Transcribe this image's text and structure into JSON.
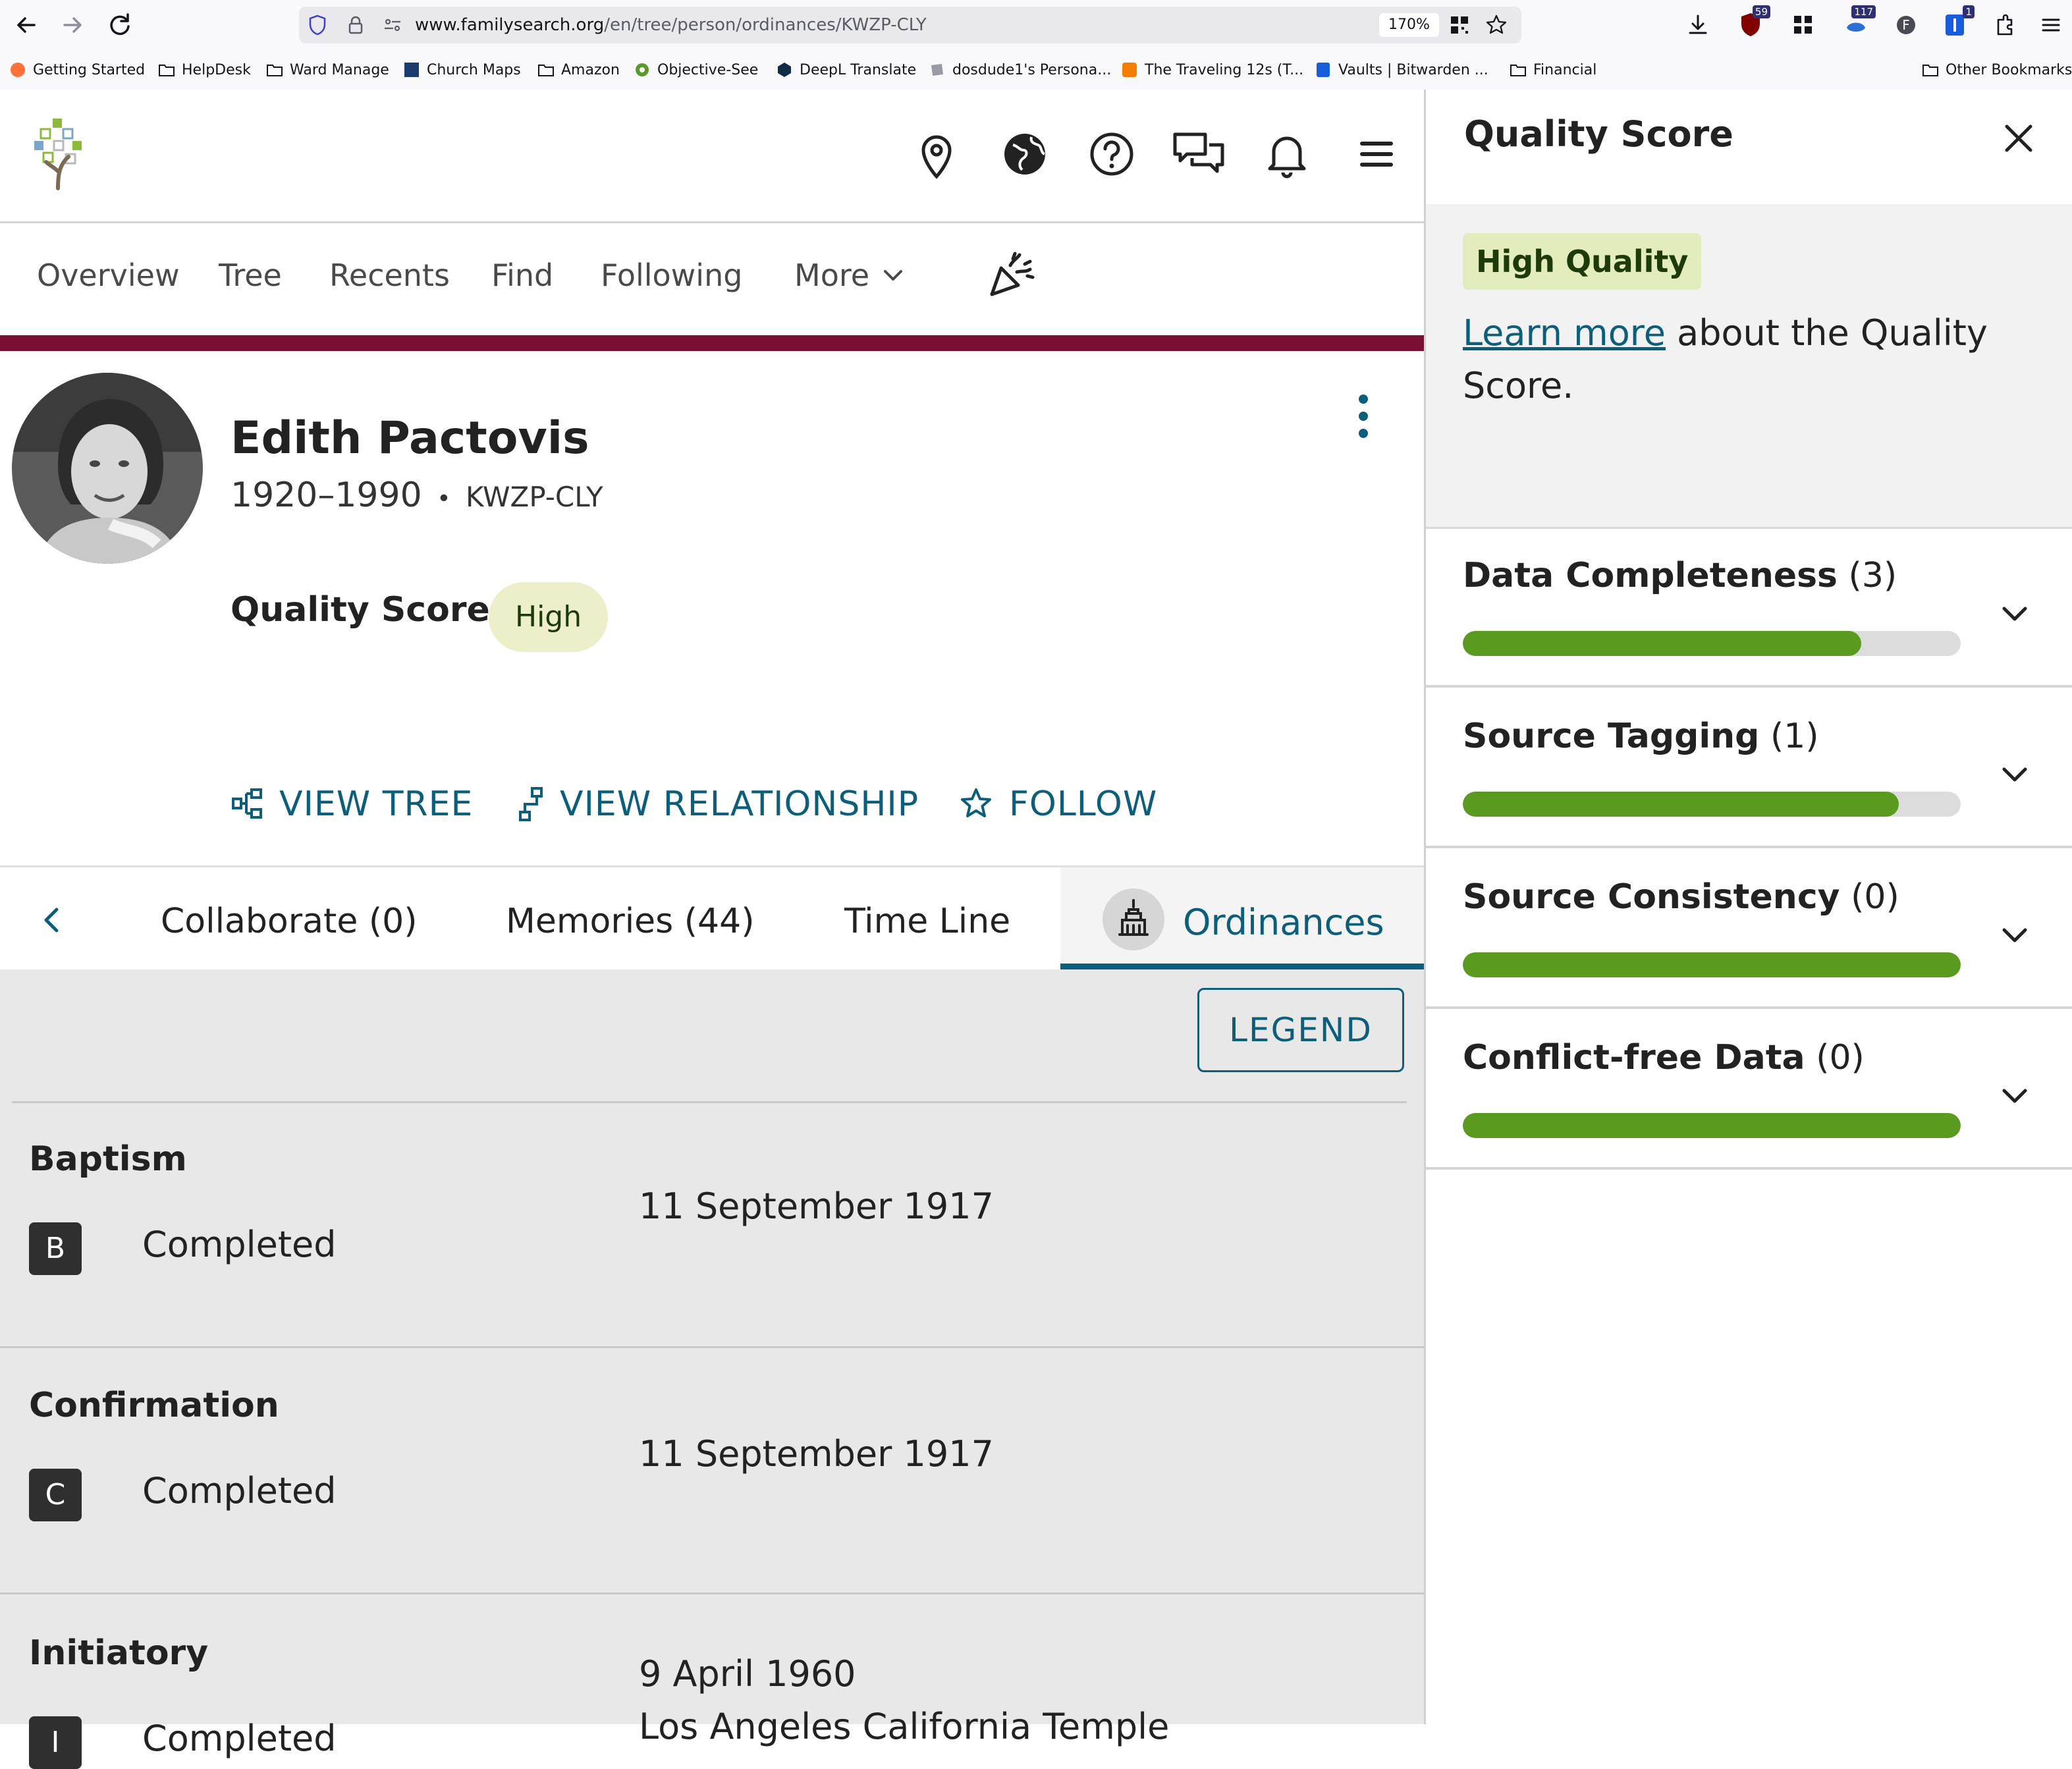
{
  "browser": {
    "url_host": "www.familysearch.org",
    "url_path": "/en/tree/person/ordinances/KWZP-CLY",
    "zoom": "170%",
    "badges": {
      "ublock": "59",
      "ext_a": "117",
      "bitwarden": "1"
    },
    "bookmarks": [
      "Getting Started",
      "HelpDesk",
      "Ward Manage",
      "Church Maps",
      "Amazon",
      "Objective-See",
      "DeepL Translate",
      "dosdude1's Persona...",
      "The Traveling 12s (T...",
      "Vaults | Bitwarden ...",
      "Financial"
    ],
    "other_bookmarks": "Other Bookmarks"
  },
  "nav": {
    "items": [
      "Overview",
      "Tree",
      "Recents",
      "Find",
      "Following",
      "More"
    ]
  },
  "person": {
    "name": "Edith Pactovis",
    "lifespan": "1920–1990",
    "separator": "•",
    "pid": "KWZP-CLY",
    "quality_label": "Quality Score:",
    "quality_value": "High"
  },
  "actions": {
    "view_tree": "VIEW TREE",
    "view_relationship": "VIEW RELATIONSHIP",
    "follow": "FOLLOW"
  },
  "tabs": {
    "collaborate": "Collaborate (0)",
    "memories": "Memories (44)",
    "timeline": "Time Line",
    "ordinances": "Ordinances"
  },
  "legend_label": "LEGEND",
  "ordinances": [
    {
      "title": "Baptism",
      "letter": "B",
      "status": "Completed",
      "date": "11 September 1917",
      "place": ""
    },
    {
      "title": "Confirmation",
      "letter": "C",
      "status": "Completed",
      "date": "11 September 1917",
      "place": ""
    },
    {
      "title": "Initiatory",
      "letter": "I",
      "status": "Completed",
      "date": "9 April 1960",
      "place": "Los Angeles California Temple"
    }
  ],
  "panel": {
    "title": "Quality Score",
    "badge": "High Quality",
    "learn_link": "Learn more",
    "learn_rest": " about the Quality Score.",
    "metrics": [
      {
        "name": "Data Completeness",
        "count": "(3)",
        "fill": 0.8
      },
      {
        "name": "Source Tagging",
        "count": "(1)",
        "fill": 0.875
      },
      {
        "name": "Source Consistency",
        "count": "(0)",
        "fill": 1.0
      },
      {
        "name": "Conflict-free Data",
        "count": "(0)",
        "fill": 1.0
      }
    ]
  },
  "colors": {
    "accent": "#0c5e7a",
    "maroon": "#7b0e33",
    "progress_green": "#5a9a1e"
  }
}
